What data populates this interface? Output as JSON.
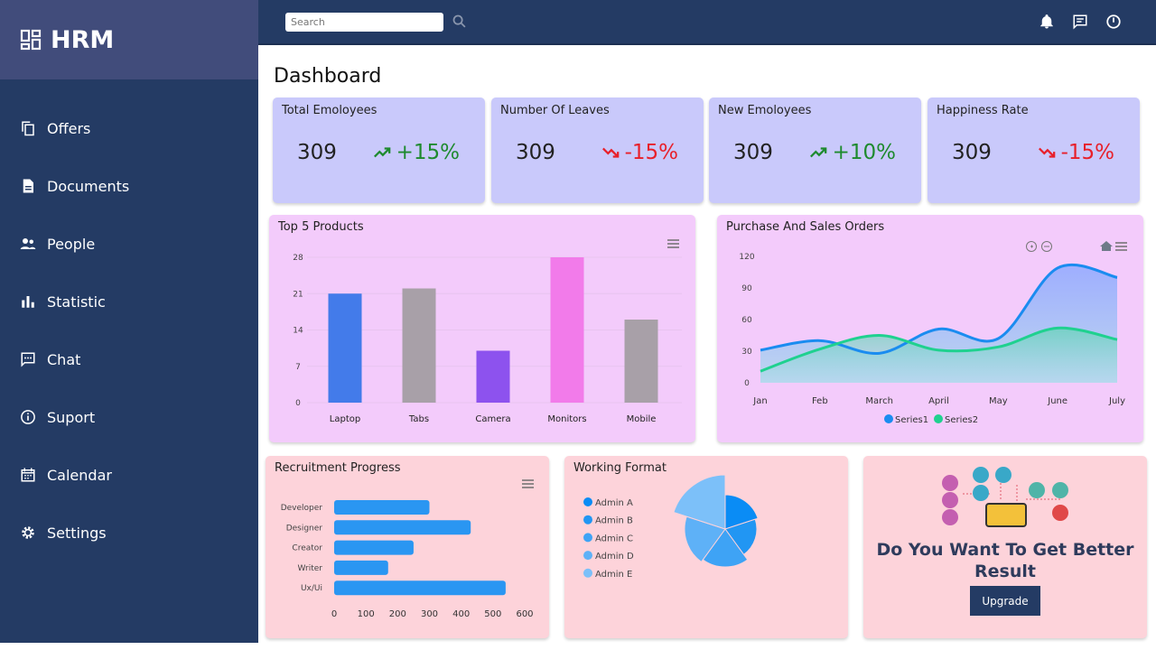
{
  "app": {
    "name": "HRM"
  },
  "sidebar": {
    "items": [
      {
        "label": "Offers",
        "icon": "copy-icon"
      },
      {
        "label": "Documents",
        "icon": "document-icon"
      },
      {
        "label": "People",
        "icon": "people-icon"
      },
      {
        "label": "Statistic",
        "icon": "bar-chart-icon"
      },
      {
        "label": "Chat",
        "icon": "chat-icon"
      },
      {
        "label": "Suport",
        "icon": "info-icon"
      },
      {
        "label": "Calendar",
        "icon": "calendar-icon"
      },
      {
        "label": "Settings",
        "icon": "gear-icon"
      }
    ]
  },
  "header": {
    "search_placeholder": "Search",
    "icons": [
      "bell-icon",
      "message-icon",
      "power-icon"
    ]
  },
  "page": {
    "title": "Dashboard"
  },
  "stats": [
    {
      "label": "Total Emoloyees",
      "value": "309",
      "change": "+15%",
      "trend": "up"
    },
    {
      "label": "Number Of Leaves",
      "value": "309",
      "change": "-15%",
      "trend": "down"
    },
    {
      "label": "New Emoloyees",
      "value": "309",
      "change": "+10%",
      "trend": "up"
    },
    {
      "label": "Happiness Rate",
      "value": "309",
      "change": "-15%",
      "trend": "down"
    }
  ],
  "colors": {
    "up": "#1e8a2e",
    "down": "#e8202a",
    "sidebar": "#243b64"
  },
  "upgrade": {
    "title": "Do You Want To Get Better Result",
    "button": "Upgrade"
  },
  "chart_data": [
    {
      "type": "bar",
      "title": "Top 5 Products",
      "categories": [
        "Laptop",
        "Tabs",
        "Camera",
        "Monitors",
        "Mobile"
      ],
      "values": [
        21,
        22,
        10,
        28,
        16
      ],
      "colors": [
        "#437bea",
        "#a8a0a8",
        "#8d52ee",
        "#f27bea",
        "#a8a0a8"
      ],
      "yticks": [
        0,
        7,
        14,
        21,
        28
      ],
      "ylim": [
        0,
        28
      ],
      "grid": true
    },
    {
      "type": "area",
      "title": "Purchase And Sales Orders",
      "categories": [
        "Jan",
        "Feb",
        "March",
        "April",
        "May",
        "June",
        "July"
      ],
      "series": [
        {
          "name": "Series1",
          "values": [
            31,
            40,
            28,
            51,
            42,
            109,
            100
          ],
          "color": "#1a8cf0"
        },
        {
          "name": "Series2",
          "values": [
            11,
            32,
            45,
            31,
            34,
            52,
            41
          ],
          "color": "#1fd18f"
        }
      ],
      "yticks": [
        0,
        30,
        60,
        90,
        120
      ],
      "ylim": [
        0,
        120
      ],
      "legend": "bottom"
    },
    {
      "type": "bar",
      "orientation": "horizontal",
      "title": "Recruitment Progress",
      "categories": [
        "Developer",
        "Designer",
        "Creator",
        "Writer",
        "Ux/Ui"
      ],
      "values": [
        300,
        430,
        250,
        170,
        540
      ],
      "xticks": [
        0,
        100,
        200,
        300,
        400,
        500,
        600
      ],
      "xlim": [
        0,
        600
      ],
      "color": "#2a96f2"
    },
    {
      "type": "pie",
      "variant": "polar-area",
      "title": "Working Format",
      "categories": [
        "Admin A",
        "Admin B",
        "Admin C",
        "Admin D",
        "Admin E"
      ],
      "values": [
        38,
        35,
        42,
        45,
        60
      ],
      "colors": [
        "#0a8cf5",
        "#2196f3",
        "#3ea3f5",
        "#5eb1f7",
        "#7cc0f9"
      ],
      "legend": "left"
    }
  ]
}
